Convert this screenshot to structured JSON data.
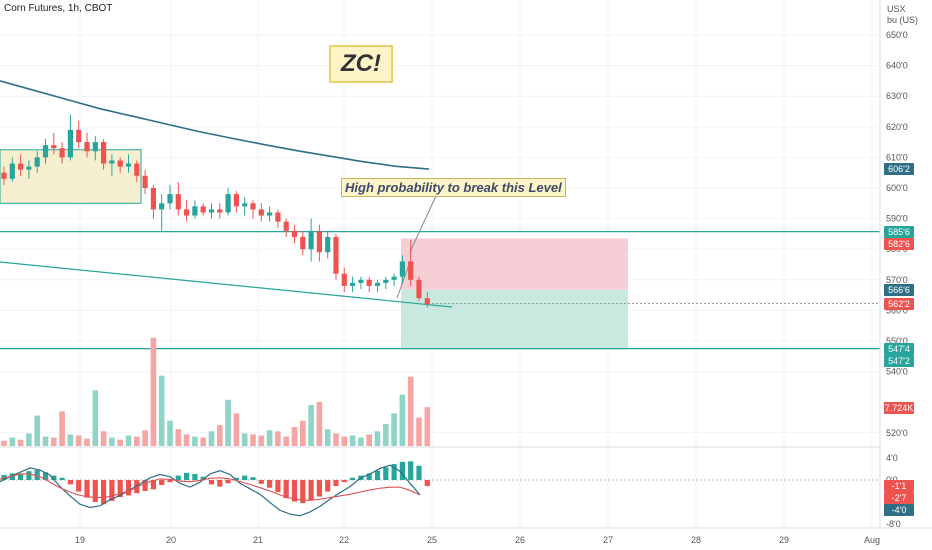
{
  "header": {
    "title": "Corn Futures, 1h, CBOT"
  },
  "axis_units": {
    "currency": "USX",
    "unit": "bu (US)"
  },
  "annotations": {
    "zc_label": "ZC!",
    "note": "High probability to break this Level"
  },
  "colors": {
    "up": "#26a69a",
    "down": "#ef5350",
    "grid": "#f0f3fa",
    "level_line": "#26a69a",
    "ma_line": "#2f6f86"
  },
  "chart_data": {
    "type": "candlestick",
    "price_axis": {
      "ylim": [
        520,
        655
      ],
      "ticks": [
        {
          "label": "650'0",
          "value": 650
        },
        {
          "label": "640'0",
          "value": 640
        },
        {
          "label": "630'0",
          "value": 630
        },
        {
          "label": "620'0",
          "value": 620
        },
        {
          "label": "610'0",
          "value": 610
        },
        {
          "label": "600'0",
          "value": 600
        },
        {
          "label": "590'0",
          "value": 590
        },
        {
          "label": "580'0",
          "value": 580
        },
        {
          "label": "570'0",
          "value": 570
        },
        {
          "label": "560'0",
          "value": 560
        },
        {
          "label": "550'0",
          "value": 550
        },
        {
          "label": "540'0",
          "value": 540
        },
        {
          "label": "520'0",
          "value": 520
        }
      ]
    },
    "price_badges": [
      {
        "label": "606'2",
        "value": 606.25,
        "color": "#2f6f86"
      },
      {
        "label": "585'6",
        "value": 585.75,
        "color": "#26a69a"
      },
      {
        "label": "582'6",
        "value": 582.75,
        "color": "#ef5350"
      },
      {
        "label": "566'6",
        "value": 566.75,
        "color": "#2f6f86"
      },
      {
        "label": "562'2",
        "value": 562.25,
        "color": "#ef5350"
      },
      {
        "label": "547'4",
        "value": 547.5,
        "color": "#26a69a"
      },
      {
        "label": "547'2",
        "value": 547.25,
        "color": "#26a69a"
      }
    ],
    "volume_badge": {
      "label": "7.724K",
      "color": "#ef5350"
    },
    "x_axis": {
      "ticks": [
        "19",
        "20",
        "21",
        "22",
        "25",
        "26",
        "27",
        "28",
        "29",
        "Aug"
      ]
    },
    "oscillator_axis": {
      "ylim": [
        -8,
        4
      ],
      "ticks": [
        {
          "label": "4'0",
          "value": 4
        },
        {
          "label": "0'0",
          "value": 0
        },
        {
          "label": "-4'0",
          "value": -4
        },
        {
          "label": "-8'0",
          "value": -8
        }
      ],
      "badges": [
        {
          "label": "-1'1",
          "value": -1.1,
          "color": "#ef5350"
        },
        {
          "label": "-2'7",
          "value": -2.7,
          "color": "#ef5350"
        },
        {
          "label": "-4'0",
          "value": -4,
          "color": "#2f6f86"
        }
      ]
    },
    "levels": [
      585.75,
      547.5
    ],
    "trade_box": {
      "entry": 566.75,
      "stop": 583.5,
      "target": 547.5
    },
    "candles": [
      [
        605,
        607,
        601,
        603
      ],
      [
        603,
        610,
        602,
        608
      ],
      [
        608,
        611,
        604,
        606
      ],
      [
        606,
        609,
        603,
        607
      ],
      [
        607,
        612,
        605,
        610
      ],
      [
        610,
        616,
        608,
        614
      ],
      [
        614,
        618,
        611,
        613
      ],
      [
        613,
        615,
        608,
        610
      ],
      [
        610,
        624,
        609,
        619
      ],
      [
        619,
        622,
        613,
        615
      ],
      [
        615,
        618,
        610,
        612
      ],
      [
        612,
        617,
        609,
        615
      ],
      [
        615,
        616,
        606,
        608
      ],
      [
        608,
        611,
        604,
        609
      ],
      [
        609,
        610,
        605,
        607
      ],
      [
        607,
        611,
        605,
        608
      ],
      [
        608,
        609,
        602,
        604
      ],
      [
        604,
        606,
        598,
        600
      ],
      [
        600,
        601,
        590,
        593
      ],
      [
        593,
        598,
        586,
        595
      ],
      [
        595,
        601,
        593,
        598
      ],
      [
        598,
        602,
        591,
        593
      ],
      [
        593,
        596,
        589,
        591
      ],
      [
        591,
        596,
        590,
        594
      ],
      [
        594,
        595,
        591,
        592
      ],
      [
        592,
        595,
        590,
        593
      ],
      [
        593,
        595,
        590,
        592
      ],
      [
        592,
        600,
        591,
        598
      ],
      [
        598,
        599,
        592,
        594
      ],
      [
        594,
        597,
        591,
        595
      ],
      [
        595,
        596,
        590,
        593
      ],
      [
        593,
        595,
        589,
        591
      ],
      [
        591,
        594,
        589,
        592
      ],
      [
        592,
        593,
        587,
        589
      ],
      [
        589,
        590,
        584,
        586
      ],
      [
        586,
        588,
        582,
        584
      ],
      [
        584,
        586,
        578,
        580
      ],
      [
        580,
        590,
        576,
        586
      ],
      [
        586,
        588,
        576,
        579
      ],
      [
        579,
        586,
        577,
        584
      ],
      [
        584,
        585,
        570,
        572
      ],
      [
        572,
        574,
        566,
        568
      ],
      [
        568,
        571,
        566,
        569
      ],
      [
        569,
        571,
        567,
        570
      ],
      [
        570,
        571,
        566,
        568
      ],
      [
        568,
        570,
        566,
        569
      ],
      [
        569,
        571,
        567,
        570
      ],
      [
        570,
        572,
        568,
        571
      ],
      [
        571,
        578,
        569,
        576
      ],
      [
        576,
        583,
        568,
        570
      ],
      [
        570,
        571,
        563,
        564
      ],
      [
        564,
        566,
        561,
        562
      ]
    ],
    "volume_values": [
      0.5,
      0.8,
      0.6,
      1.2,
      2.9,
      0.9,
      0.8,
      3.3,
      1.1,
      1.0,
      0.7,
      5.3,
      1.4,
      0.8,
      0.6,
      1.0,
      0.9,
      1.5,
      10.3,
      6.7,
      2.4,
      1.6,
      1.1,
      0.9,
      0.8,
      1.4,
      2.0,
      4.4,
      3.1,
      1.2,
      1.1,
      1.0,
      1.5,
      1.4,
      0.9,
      1.8,
      2.4,
      3.9,
      4.2,
      1.6,
      1.2,
      0.9,
      1.0,
      0.8,
      1.1,
      1.4,
      2.1,
      3.1,
      4.9,
      6.6,
      2.7,
      3.7
    ],
    "histogram_values": [
      0.9,
      1.2,
      1.0,
      1.6,
      1.8,
      1.4,
      0.8,
      0.4,
      -0.8,
      -2.1,
      -3.2,
      -4.0,
      -4.4,
      -3.8,
      -3.1,
      -2.8,
      -2.4,
      -2.0,
      -1.7,
      -0.9,
      -0.4,
      0.8,
      1.3,
      1.1,
      0.6,
      -0.8,
      -1.2,
      -0.6,
      0.4,
      0.8,
      0.5,
      -0.7,
      -1.4,
      -2.2,
      -3.3,
      -3.9,
      -4.2,
      -3.7,
      -3.0,
      -2.1,
      -1.1,
      -0.4,
      0.4,
      0.8,
      1.2,
      1.7,
      2.3,
      2.9,
      3.3,
      3.4,
      2.6,
      -1.1
    ],
    "macd_line": [
      -0.3,
      0.6,
      1.4,
      2.2,
      1.8,
      0.9,
      -1.2,
      -2.9,
      -4.4,
      -5.0,
      -4.7,
      -3.6,
      -2.8,
      -1.8,
      -0.7,
      0.4,
      1.0,
      0.6,
      -0.6,
      -1.3,
      -0.4,
      1.1,
      1.7,
      1.0,
      -0.6,
      -1.6,
      -2.6,
      -4.1,
      -5.5,
      -6.2,
      -6.5,
      -5.8,
      -4.8,
      -3.5,
      -2.3,
      -1.2,
      0.3,
      1.1,
      2.1,
      2.7,
      1.6,
      -0.6,
      -2.7
    ],
    "signal_line": [
      0.2,
      0.6,
      1.1,
      1.1,
      0.6,
      -0.4,
      -1.4,
      -2.2,
      -2.8,
      -3.1,
      -3.2,
      -3.0,
      -2.5,
      -1.9,
      -1.0,
      -0.3,
      0.2,
      0.1,
      -0.2,
      -0.3,
      -0.1,
      0.3,
      0.4,
      0.2,
      -0.3,
      -0.8,
      -1.4,
      -2.0,
      -2.7,
      -3.3,
      -3.6,
      -3.7,
      -3.5,
      -3.2,
      -2.9,
      -2.6,
      -2.2,
      -1.8,
      -1.5,
      -1.3,
      -1.3,
      -1.9,
      -2.7
    ],
    "ma_line": [
      635,
      632,
      629,
      626,
      623.5,
      621,
      618.5,
      616.3,
      614.2,
      612.2,
      610.4,
      608.6,
      607.1,
      606.2
    ]
  }
}
